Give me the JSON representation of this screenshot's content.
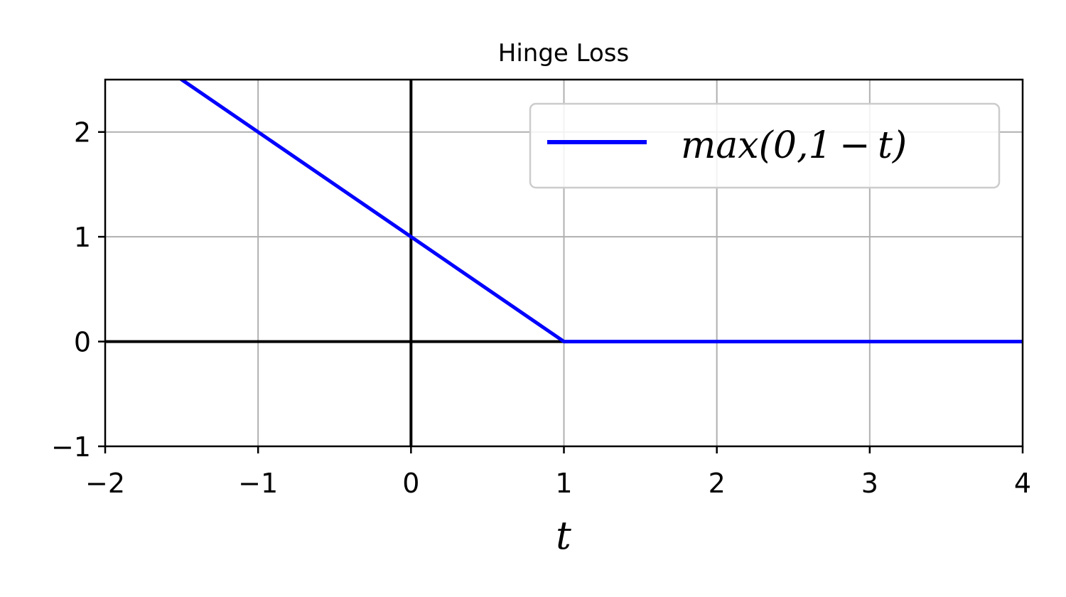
{
  "chart_data": {
    "type": "line",
    "title": "Hinge Loss",
    "xlabel": "t",
    "ylabel": "",
    "xlim": [
      -2,
      4
    ],
    "ylim": [
      -1,
      2.5
    ],
    "x_ticks": [
      -2,
      -1,
      0,
      1,
      2,
      3,
      4
    ],
    "x_tick_labels": [
      "−2",
      "−1",
      "0",
      "1",
      "2",
      "3",
      "4"
    ],
    "y_ticks": [
      -1,
      0,
      1,
      2
    ],
    "y_tick_labels": [
      "−1",
      "0",
      "1",
      "2"
    ],
    "grid": true,
    "reference_lines": {
      "x": 0,
      "y": 0,
      "color": "#000000"
    },
    "legend": {
      "placement": "upper right"
    },
    "series": [
      {
        "name": "max(0,1 − t)",
        "color": "#0000ff",
        "x": [
          -2,
          1,
          4
        ],
        "y": [
          3,
          0,
          0
        ]
      }
    ]
  }
}
